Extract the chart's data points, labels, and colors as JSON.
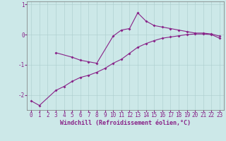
{
  "background_color": "#cce8e8",
  "line_color": "#882288",
  "xlabel": "Windchill (Refroidissement éolien,°C)",
  "ylim": [
    -2.5,
    1.1
  ],
  "xlim": [
    -0.5,
    23.5
  ],
  "yticks": [
    -2,
    -1,
    0,
    1
  ],
  "xticks": [
    0,
    1,
    2,
    3,
    4,
    5,
    6,
    7,
    8,
    9,
    10,
    11,
    12,
    13,
    14,
    15,
    16,
    17,
    18,
    19,
    20,
    21,
    22,
    23
  ],
  "curve1_x": [
    3,
    5,
    6,
    7,
    8,
    10,
    11,
    12,
    13,
    14,
    15,
    16,
    17,
    18,
    19,
    20,
    21,
    22,
    23
  ],
  "curve1_y": [
    -0.6,
    -0.75,
    -0.85,
    -0.9,
    -0.95,
    -0.05,
    0.15,
    0.2,
    0.72,
    0.45,
    0.3,
    0.25,
    0.2,
    0.15,
    0.1,
    0.05,
    0.05,
    0.02,
    -0.05
  ],
  "curve2_x": [
    0,
    1,
    3,
    4,
    5,
    6,
    7,
    8,
    9,
    10,
    11,
    12,
    13,
    14,
    15,
    16,
    17,
    18,
    19,
    20,
    21,
    22,
    23
  ],
  "curve2_y": [
    -2.2,
    -2.35,
    -1.85,
    -1.72,
    -1.55,
    -1.42,
    -1.35,
    -1.25,
    -1.12,
    -0.95,
    -0.82,
    -0.62,
    -0.42,
    -0.3,
    -0.2,
    -0.12,
    -0.08,
    -0.04,
    0.0,
    0.02,
    0.02,
    0.0,
    -0.12
  ],
  "grid_color": "#aacccc",
  "axis_fontsize": 6,
  "tick_fontsize": 5.5,
  "marker_size": 2.0,
  "line_width": 0.8
}
